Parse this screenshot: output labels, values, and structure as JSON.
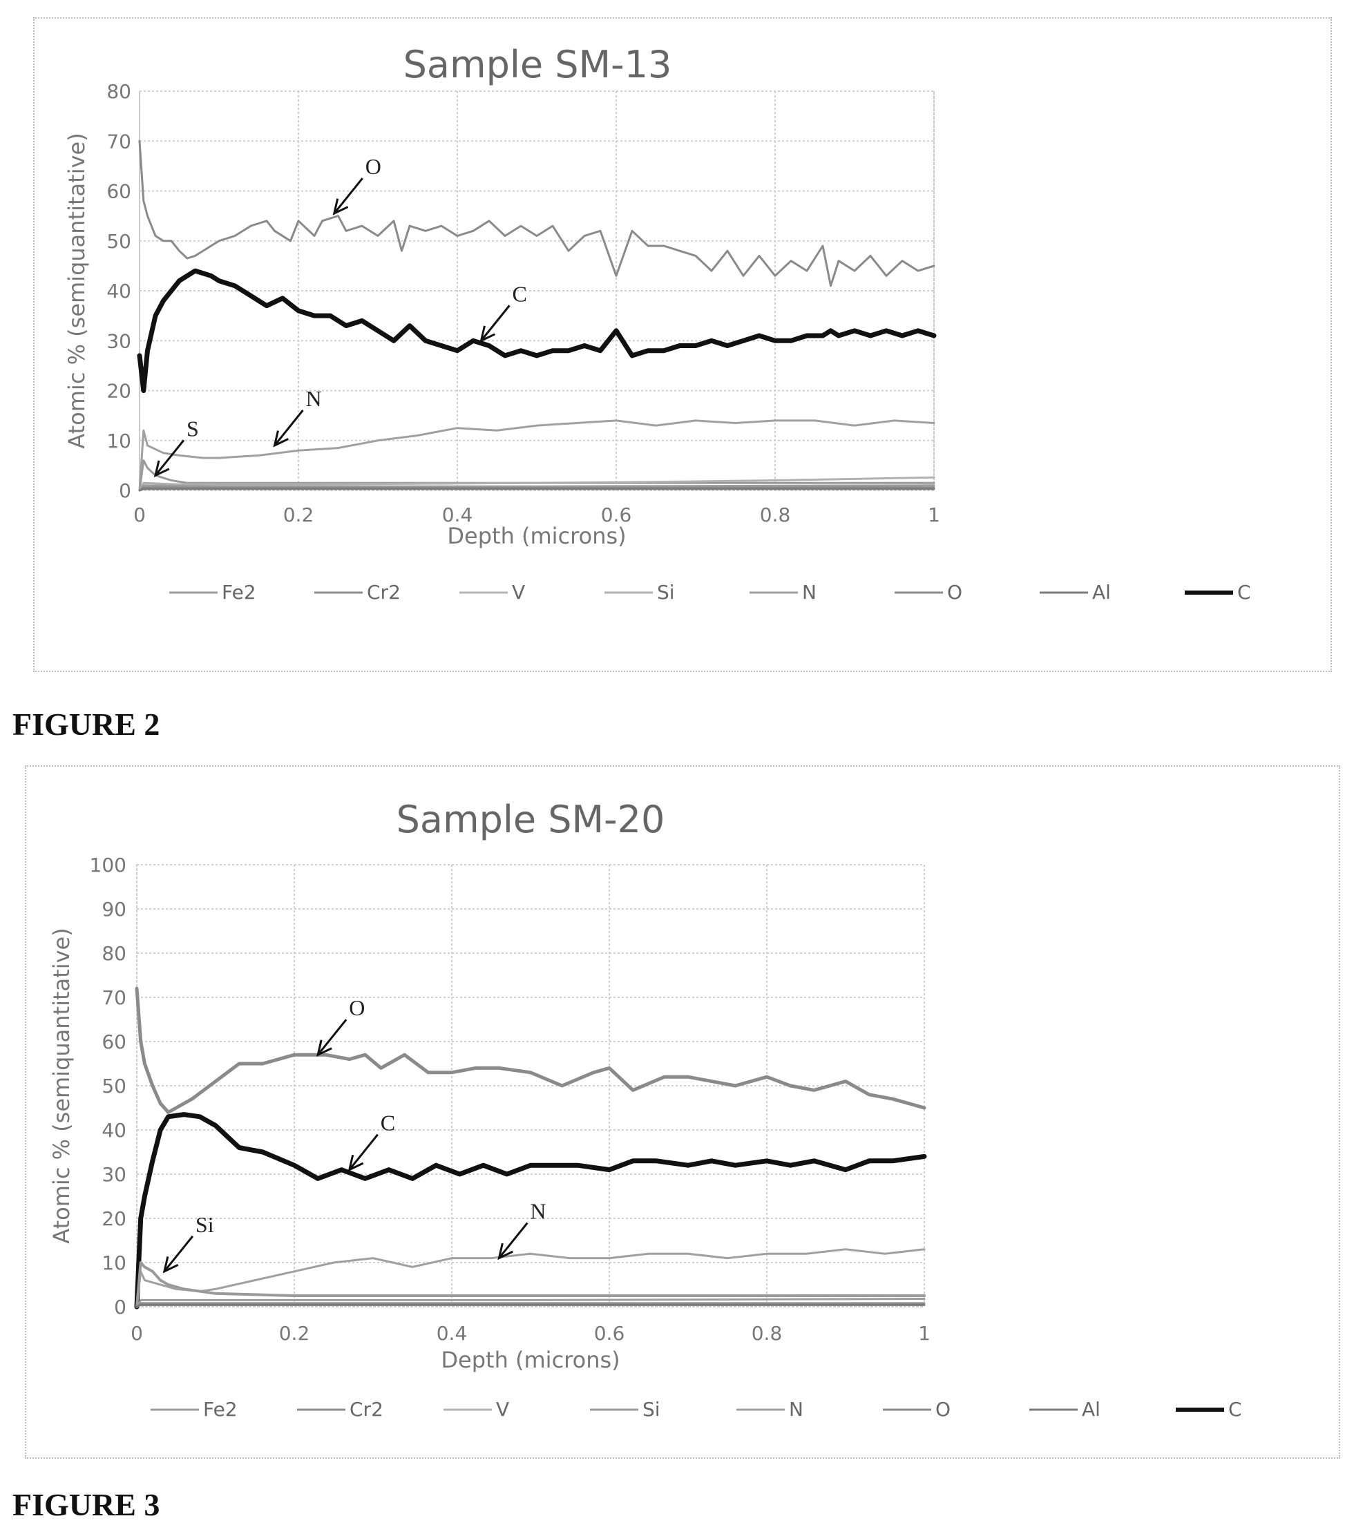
{
  "captions": [
    "FIGURE 2",
    "FIGURE 3"
  ],
  "chart_data": [
    {
      "type": "line",
      "title": "Sample SM-13",
      "xlabel": "Depth (microns)",
      "ylabel": "Atomic % (semiquantitative)",
      "xlim": [
        0,
        1
      ],
      "ylim": [
        0,
        80
      ],
      "xticks": [
        "0",
        "0.2",
        "0.4",
        "0.6",
        "0.8",
        "1"
      ],
      "yticks": [
        "0",
        "10",
        "20",
        "30",
        "40",
        "50",
        "60",
        "70",
        "80"
      ],
      "grid": true,
      "legend_position": "bottom",
      "legend": [
        "Fe2",
        "Cr2",
        "V",
        "Si",
        "N",
        "O",
        "Al",
        "C"
      ],
      "series": [
        {
          "name": "O",
          "color": "#8a8a8a",
          "width": 3,
          "x": [
            0,
            0.005,
            0.01,
            0.02,
            0.03,
            0.04,
            0.05,
            0.06,
            0.07,
            0.09,
            0.1,
            0.12,
            0.14,
            0.16,
            0.17,
            0.19,
            0.2,
            0.22,
            0.23,
            0.25,
            0.26,
            0.28,
            0.3,
            0.32,
            0.33,
            0.34,
            0.36,
            0.38,
            0.4,
            0.42,
            0.44,
            0.46,
            0.48,
            0.5,
            0.52,
            0.54,
            0.56,
            0.58,
            0.6,
            0.62,
            0.64,
            0.66,
            0.68,
            0.7,
            0.72,
            0.74,
            0.76,
            0.78,
            0.8,
            0.82,
            0.84,
            0.86,
            0.87,
            0.88,
            0.9,
            0.92,
            0.94,
            0.96,
            0.98,
            1.0
          ],
          "y": [
            70,
            58,
            55,
            51,
            50,
            50,
            48,
            46.5,
            47,
            49,
            50,
            51,
            53,
            54,
            52,
            50,
            54,
            51,
            54,
            55,
            52,
            53,
            51,
            54,
            48,
            53,
            52,
            53,
            51,
            52,
            54,
            51,
            53,
            51,
            53,
            48,
            51,
            52,
            43,
            52,
            49,
            49,
            48,
            47,
            44,
            48,
            43,
            47,
            43,
            46,
            44,
            49,
            41,
            46,
            44,
            47,
            43,
            46,
            44,
            45
          ]
        },
        {
          "name": "C",
          "color": "#111111",
          "width": 7,
          "x": [
            0,
            0.005,
            0.01,
            0.02,
            0.03,
            0.04,
            0.05,
            0.06,
            0.07,
            0.09,
            0.1,
            0.12,
            0.14,
            0.16,
            0.18,
            0.2,
            0.22,
            0.24,
            0.26,
            0.28,
            0.3,
            0.32,
            0.34,
            0.36,
            0.38,
            0.4,
            0.42,
            0.44,
            0.46,
            0.48,
            0.5,
            0.52,
            0.54,
            0.56,
            0.58,
            0.6,
            0.62,
            0.64,
            0.66,
            0.68,
            0.7,
            0.72,
            0.74,
            0.76,
            0.78,
            0.8,
            0.82,
            0.84,
            0.86,
            0.87,
            0.88,
            0.9,
            0.92,
            0.94,
            0.96,
            0.98,
            1.0
          ],
          "y": [
            27,
            20,
            28,
            35,
            38,
            40,
            42,
            43,
            44,
            43,
            42,
            41,
            39,
            37,
            38.5,
            36,
            35,
            35,
            33,
            34,
            32,
            30,
            33,
            30,
            29,
            28,
            30,
            29,
            27,
            28,
            27,
            28,
            28,
            29,
            28,
            32,
            27,
            28,
            28,
            29,
            29,
            30,
            29,
            30,
            31,
            30,
            30,
            31,
            31,
            32,
            31,
            32,
            31,
            32,
            31,
            32,
            31
          ]
        },
        {
          "name": "N",
          "color": "#a0a0a0",
          "width": 3,
          "x": [
            0,
            0.005,
            0.01,
            0.03,
            0.05,
            0.08,
            0.1,
            0.15,
            0.2,
            0.25,
            0.3,
            0.35,
            0.4,
            0.45,
            0.5,
            0.55,
            0.6,
            0.65,
            0.7,
            0.75,
            0.8,
            0.85,
            0.9,
            0.95,
            1.0
          ],
          "y": [
            0,
            12,
            9,
            7.5,
            7,
            6.5,
            6.5,
            7,
            8,
            8.5,
            10,
            11,
            12.5,
            12,
            13,
            13.5,
            14,
            13,
            14,
            13.5,
            14,
            14,
            13,
            14,
            13.5
          ]
        },
        {
          "name": "S",
          "color": "#9a9a9a",
          "width": 3,
          "x": [
            0,
            0.005,
            0.01,
            0.02,
            0.03,
            0.04,
            0.06,
            0.1,
            0.2,
            0.4,
            0.6,
            0.8,
            1.0
          ],
          "y": [
            0,
            6,
            4.5,
            3,
            2.5,
            2,
            1.5,
            1.5,
            1.5,
            1.5,
            1.5,
            1.5,
            1.5
          ]
        },
        {
          "name": "Si",
          "color": "#b0b0b0",
          "width": 3,
          "x": [
            0,
            0.005,
            0.05,
            0.2,
            0.4,
            0.6,
            0.8,
            1.0
          ],
          "y": [
            0,
            1.5,
            1.2,
            1.2,
            1.4,
            1.6,
            2.0,
            2.6
          ]
        },
        {
          "name": "Fe2",
          "color": "#9c9c9c",
          "width": 3,
          "x": [
            0,
            0.005,
            0.1,
            0.5,
            1.0
          ],
          "y": [
            0,
            1.0,
            0.8,
            0.8,
            1.0
          ]
        },
        {
          "name": "Cr2",
          "color": "#8c8c8c",
          "width": 3,
          "x": [
            0,
            0.005,
            0.1,
            0.5,
            1.0
          ],
          "y": [
            0,
            0.6,
            0.5,
            0.5,
            0.6
          ]
        },
        {
          "name": "Al",
          "color": "#7a7a7a",
          "width": 3,
          "x": [
            0,
            0.005,
            0.1,
            0.5,
            1.0
          ],
          "y": [
            0,
            0.3,
            0.3,
            0.3,
            0.3
          ]
        }
      ],
      "annotations": [
        {
          "label": "O",
          "x": 0.245,
          "y": 55.5
        },
        {
          "label": "C",
          "x": 0.43,
          "y": 30
        },
        {
          "label": "N",
          "x": 0.17,
          "y": 9
        },
        {
          "label": "S",
          "x": 0.02,
          "y": 3
        }
      ]
    },
    {
      "type": "line",
      "title": "Sample SM-20",
      "xlabel": "Depth (microns)",
      "ylabel": "Atomic % (semiquantitative)",
      "xlim": [
        0,
        1
      ],
      "ylim": [
        0,
        100
      ],
      "xticks": [
        "0",
        "0.2",
        "0.4",
        "0.6",
        "0.8",
        "1"
      ],
      "yticks": [
        "0",
        "10",
        "20",
        "30",
        "40",
        "50",
        "60",
        "70",
        "80",
        "90",
        "100"
      ],
      "grid": true,
      "legend_position": "bottom",
      "legend": [
        "Fe2",
        "Cr2",
        "V",
        "Si",
        "N",
        "O",
        "Al",
        "C"
      ],
      "series": [
        {
          "name": "O",
          "color": "#8a8a8a",
          "width": 5,
          "x": [
            0,
            0.005,
            0.01,
            0.02,
            0.03,
            0.04,
            0.05,
            0.07,
            0.1,
            0.13,
            0.16,
            0.2,
            0.24,
            0.27,
            0.29,
            0.31,
            0.34,
            0.37,
            0.4,
            0.43,
            0.46,
            0.5,
            0.54,
            0.58,
            0.6,
            0.63,
            0.67,
            0.7,
            0.73,
            0.76,
            0.8,
            0.83,
            0.86,
            0.9,
            0.93,
            0.96,
            1.0
          ],
          "y": [
            72,
            60,
            55,
            50,
            46,
            44,
            45,
            47,
            51,
            55,
            55,
            57,
            57,
            56,
            57,
            54,
            57,
            53,
            53,
            54,
            54,
            53,
            50,
            53,
            54,
            49,
            52,
            52,
            51,
            50,
            52,
            50,
            49,
            51,
            48,
            47,
            45
          ]
        },
        {
          "name": "C",
          "color": "#111111",
          "width": 7,
          "x": [
            0,
            0.005,
            0.01,
            0.02,
            0.03,
            0.04,
            0.06,
            0.08,
            0.1,
            0.13,
            0.16,
            0.2,
            0.23,
            0.26,
            0.29,
            0.32,
            0.35,
            0.38,
            0.41,
            0.44,
            0.47,
            0.5,
            0.53,
            0.56,
            0.6,
            0.63,
            0.66,
            0.7,
            0.73,
            0.76,
            0.8,
            0.83,
            0.86,
            0.9,
            0.93,
            0.96,
            1.0
          ],
          "y": [
            0,
            20,
            25,
            33,
            40,
            43,
            43.5,
            43,
            41,
            36,
            35,
            32,
            29,
            31,
            29,
            31,
            29,
            32,
            30,
            32,
            30,
            32,
            32,
            32,
            31,
            33,
            33,
            32,
            33,
            32,
            33,
            32,
            33,
            31,
            33,
            33,
            34
          ]
        },
        {
          "name": "N",
          "color": "#a0a0a0",
          "width": 3,
          "x": [
            0,
            0.005,
            0.01,
            0.03,
            0.05,
            0.08,
            0.1,
            0.15,
            0.2,
            0.25,
            0.3,
            0.35,
            0.4,
            0.45,
            0.5,
            0.55,
            0.6,
            0.65,
            0.7,
            0.75,
            0.8,
            0.85,
            0.9,
            0.95,
            1.0
          ],
          "y": [
            0,
            8,
            6,
            5,
            4,
            3.5,
            4,
            6,
            8,
            10,
            11,
            9,
            11,
            11,
            12,
            11,
            11,
            12,
            12,
            11,
            12,
            12,
            13,
            12,
            13
          ]
        },
        {
          "name": "Si",
          "color": "#9a9a9a",
          "width": 4,
          "x": [
            0,
            0.005,
            0.01,
            0.02,
            0.03,
            0.04,
            0.06,
            0.1,
            0.2,
            0.4,
            0.6,
            0.8,
            1.0
          ],
          "y": [
            0,
            10,
            9,
            8,
            6,
            5,
            4,
            3,
            2.5,
            2.5,
            2.5,
            2.5,
            2.5
          ]
        },
        {
          "name": "Fe2",
          "color": "#9c9c9c",
          "width": 3,
          "x": [
            0,
            0.005,
            0.1,
            0.5,
            1.0
          ],
          "y": [
            0,
            1.5,
            1.5,
            1.5,
            1.8
          ]
        },
        {
          "name": "Cr2",
          "color": "#8c8c8c",
          "width": 3,
          "x": [
            0,
            0.005,
            0.1,
            0.5,
            1.0
          ],
          "y": [
            0,
            0.8,
            0.8,
            0.8,
            0.8
          ]
        },
        {
          "name": "Al",
          "color": "#7a7a7a",
          "width": 3,
          "x": [
            0,
            0.005,
            0.1,
            0.5,
            1.0
          ],
          "y": [
            0,
            0.4,
            0.4,
            0.4,
            0.4
          ]
        }
      ],
      "annotations": [
        {
          "label": "O",
          "x": 0.23,
          "y": 57
        },
        {
          "label": "C",
          "x": 0.27,
          "y": 31
        },
        {
          "label": "N",
          "x": 0.46,
          "y": 11
        },
        {
          "label": "Si",
          "x": 0.035,
          "y": 8
        }
      ]
    }
  ]
}
